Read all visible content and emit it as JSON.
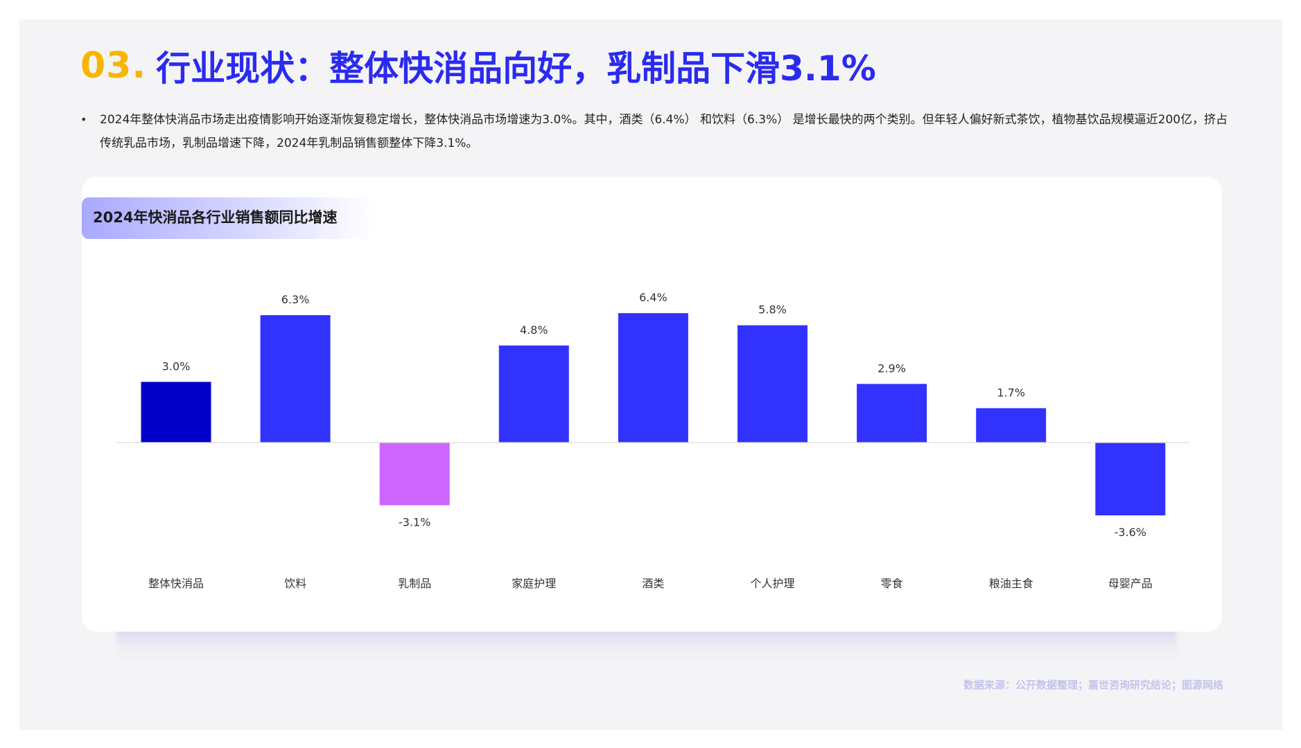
{
  "header": {
    "number": "03.",
    "title": "行业现状：整体快消品向好，乳制品下滑3.1%"
  },
  "summary": {
    "bullet": "•",
    "text": "2024年整体快消品市场走出疫情影响开始逐渐恢复稳定增长，整体快消品市场增速为3.0%。其中，酒类（6.4%） 和饮料（6.3%） 是增长最快的两个类别。但年轻人偏好新式茶饮，植物基饮品规模逼近200亿，挤占传统乳品市场，乳制品增速下降，2024年乳制品销售额整体下降3.1%。"
  },
  "card": {
    "label": "2024年快消品各行业销售额同比增速"
  },
  "source": "数据来源：公开数据整理；嘉世咨询研究结论；图源网络",
  "colors": {
    "title_number": "#f7b500",
    "title_text": "#2b2bf0",
    "bar_default": "#3232ff",
    "bar_total": "#0000c8",
    "bar_decline": "#cc66ff"
  },
  "chart_data": {
    "type": "bar",
    "title": "2024年快消品各行业销售额同比增速",
    "categories": [
      "整体快消品",
      "饮料",
      "乳制品",
      "家庭护理",
      "酒类",
      "个人护理",
      "零食",
      "粮油主食",
      "母婴产品"
    ],
    "values": [
      3.0,
      6.3,
      -3.1,
      4.8,
      6.4,
      5.8,
      2.9,
      1.7,
      -3.6
    ],
    "labels": [
      "3.0%",
      "6.3%",
      "-3.1%",
      "4.8%",
      "6.4%",
      "5.8%",
      "2.9%",
      "1.7%",
      "-3.6%"
    ],
    "bar_colors": [
      "#0000c8",
      "#3232ff",
      "#cc66ff",
      "#3232ff",
      "#3232ff",
      "#3232ff",
      "#3232ff",
      "#3232ff",
      "#3232ff"
    ],
    "unit": "%",
    "ylim": [
      -3.6,
      6.4
    ],
    "grid": false,
    "legend": "none"
  }
}
